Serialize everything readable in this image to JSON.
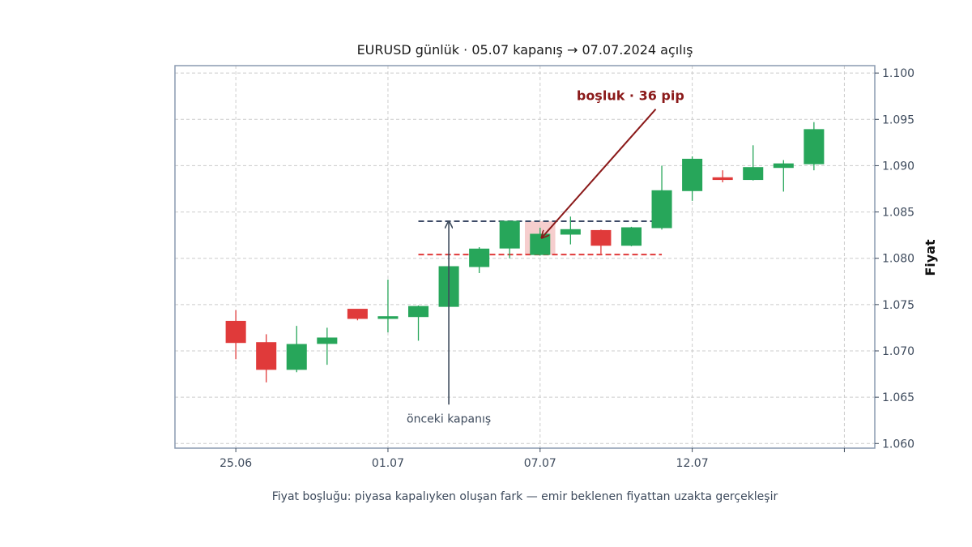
{
  "chart_data": {
    "type": "candlestick",
    "title": "EURUSD günlük · 05.07 kapanış → 07.07.2024 açılış",
    "ylabel": "Fiyat",
    "xlabel": "",
    "caption": "Fiyat boşluğu: piyasa kapalıyken oluşan fark — emir beklenen fiyattan uzakta gerçekleşir",
    "ylim": [
      1.0595,
      1.1008
    ],
    "yticks": [
      1.06,
      1.065,
      1.07,
      1.075,
      1.08,
      1.085,
      1.09,
      1.095,
      1.1
    ],
    "ytick_labels": [
      "1.060",
      "1.065",
      "1.070",
      "1.075",
      "1.080",
      "1.085",
      "1.090",
      "1.095",
      "1.100"
    ],
    "xticks": [
      {
        "pos": 1,
        "label": "25.06"
      },
      {
        "pos": 6,
        "label": "01.07"
      },
      {
        "pos": 11,
        "label": "07.07"
      },
      {
        "pos": 16,
        "label": "12.07"
      },
      {
        "pos": 21,
        "label": ""
      }
    ],
    "xlim": [
      -1,
      22
    ],
    "grid": true,
    "up_color": "#27a65a",
    "down_color": "#e03a3a",
    "candles": [
      {
        "x": 1,
        "open": 1.0732,
        "high": 1.0744,
        "low": 1.0691,
        "close": 1.0709
      },
      {
        "x": 2,
        "open": 1.0709,
        "high": 1.0718,
        "low": 1.0666,
        "close": 1.068
      },
      {
        "x": 3,
        "open": 1.068,
        "high": 1.0727,
        "low": 1.0677,
        "close": 1.0707
      },
      {
        "x": 4,
        "open": 1.0708,
        "high": 1.0725,
        "low": 1.0685,
        "close": 1.0714
      },
      {
        "x": 5,
        "open": 1.0745,
        "high": 1.0745,
        "low": 1.0733,
        "close": 1.0735
      },
      {
        "x": 6,
        "open": 1.0735,
        "high": 1.0777,
        "low": 1.072,
        "close": 1.0737
      },
      {
        "x": 7,
        "open": 1.0737,
        "high": 1.0749,
        "low": 1.0711,
        "close": 1.0748
      },
      {
        "x": 8,
        "open": 1.0748,
        "high": 1.0792,
        "low": 1.0747,
        "close": 1.0791
      },
      {
        "x": 9,
        "open": 1.0791,
        "high": 1.0812,
        "low": 1.0784,
        "close": 1.081
      },
      {
        "x": 10,
        "open": 1.0811,
        "high": 1.084,
        "low": 1.08,
        "close": 1.084
      },
      {
        "x": 11,
        "open": 1.0804,
        "high": 1.0833,
        "low": 1.0803,
        "close": 1.0826
      },
      {
        "x": 12,
        "open": 1.0826,
        "high": 1.0845,
        "low": 1.0815,
        "close": 1.0831
      },
      {
        "x": 13,
        "open": 1.083,
        "high": 1.0831,
        "low": 1.0805,
        "close": 1.0814
      },
      {
        "x": 14,
        "open": 1.0814,
        "high": 1.0834,
        "low": 1.0813,
        "close": 1.0833
      },
      {
        "x": 15,
        "open": 1.0833,
        "high": 1.09,
        "low": 1.0831,
        "close": 1.0873
      },
      {
        "x": 16,
        "open": 1.0873,
        "high": 1.091,
        "low": 1.0862,
        "close": 1.0907
      },
      {
        "x": 17,
        "open": 1.0887,
        "high": 1.0895,
        "low": 1.0882,
        "close": 1.0885
      },
      {
        "x": 18,
        "open": 1.0885,
        "high": 1.0922,
        "low": 1.0884,
        "close": 1.0898
      },
      {
        "x": 19,
        "open": 1.0898,
        "high": 1.0906,
        "low": 1.0872,
        "close": 1.0902
      },
      {
        "x": 20,
        "open": 1.0902,
        "high": 1.0947,
        "low": 1.0895,
        "close": 1.0939
      }
    ],
    "reference_lines": [
      {
        "name": "previous-close-line",
        "y": 1.084,
        "x_from": 7,
        "x_to": 15,
        "color": "#3d4a66"
      },
      {
        "name": "gap-open-line",
        "y": 1.0804,
        "x_from": 7,
        "x_to": 15,
        "color": "#e03a3a"
      }
    ],
    "gap_zone": {
      "x_center": 11,
      "y_low": 1.0804,
      "y_high": 1.084,
      "color": "#f4c6c6"
    },
    "annotations": [
      {
        "name": "gap-annotation",
        "text": "boşluk · 36 pip",
        "x": 12.2,
        "y": 1.0975,
        "arrow_from": {
          "x": 14.8,
          "y": 1.0961
        },
        "arrow_to": {
          "x": 11.05,
          "y": 1.0822
        },
        "color": "#8b1a1a"
      },
      {
        "name": "previous-close-annotation",
        "text": "önceki kapanış",
        "x": 8,
        "y": 1.0627,
        "arrow_from": {
          "x": 8,
          "y": 1.0642
        },
        "arrow_to": {
          "x": 8,
          "y": 1.084
        },
        "color": "#3d4a5c"
      }
    ]
  }
}
